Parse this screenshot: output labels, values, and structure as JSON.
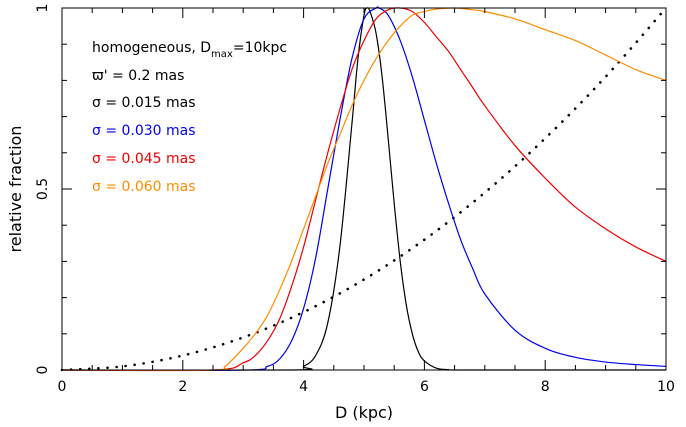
{
  "chart_data": {
    "type": "line",
    "xlabel": "D (kpc)",
    "ylabel": "relative fraction",
    "xlim": [
      0,
      10
    ],
    "ylim": [
      0,
      1
    ],
    "xticks": [
      0,
      2,
      4,
      6,
      8,
      10
    ],
    "yticks": [
      0,
      0.5,
      1
    ],
    "xtick_labels": [
      "0",
      "2",
      "4",
      "6",
      "8",
      "10"
    ],
    "ytick_labels": [
      "0",
      "0.5",
      "1"
    ],
    "grid": false,
    "annotations": {
      "line1_prefix": "homogeneous, D",
      "line1_sub": "max",
      "line1_suffix": "=10kpc",
      "line2": "ϖ' = 0.2 mas",
      "line3": "σ = 0.015 mas",
      "line4": "σ = 0.030 mas",
      "line5": "σ = 0.045 mas",
      "line6": "σ = 0.060 mas"
    },
    "colors": {
      "line3": "#000000",
      "line4": "#0000ee",
      "line5": "#ee0000",
      "line6": "#ff8c00"
    },
    "series": [
      {
        "color": "#000000",
        "style": "dotted",
        "x": [
          0,
          1,
          2,
          3,
          4,
          5,
          6,
          7,
          8,
          9,
          10
        ],
        "y": [
          0,
          0.01,
          0.04,
          0.09,
          0.16,
          0.25,
          0.36,
          0.49,
          0.64,
          0.81,
          1.0
        ]
      },
      {
        "color": "#000000",
        "style": "solid",
        "x": [
          0,
          3.8,
          4.0,
          4.2,
          4.4,
          4.6,
          4.8,
          4.9,
          5.0,
          5.05,
          5.1,
          5.2,
          5.3,
          5.4,
          5.5,
          5.6,
          5.7,
          5.8,
          5.9,
          6.0,
          6.2,
          6.4,
          6.6,
          10
        ],
        "y": [
          0,
          0,
          0.01,
          0.04,
          0.13,
          0.34,
          0.68,
          0.86,
          0.98,
          1.0,
          0.99,
          0.93,
          0.81,
          0.64,
          0.46,
          0.3,
          0.18,
          0.1,
          0.05,
          0.025,
          0.005,
          0.001,
          0,
          0
        ]
      },
      {
        "color": "#0000ee",
        "style": "solid",
        "x": [
          0,
          3.0,
          3.4,
          3.6,
          3.8,
          4.0,
          4.2,
          4.4,
          4.6,
          4.8,
          5.0,
          5.2,
          5.25,
          5.4,
          5.6,
          5.8,
          6.0,
          6.2,
          6.4,
          6.6,
          6.8,
          7.0,
          7.5,
          8.0,
          8.5,
          9.0,
          9.5,
          10.0
        ],
        "y": [
          0,
          0,
          0.01,
          0.03,
          0.08,
          0.17,
          0.31,
          0.5,
          0.69,
          0.86,
          0.97,
          1.0,
          1.0,
          0.98,
          0.91,
          0.81,
          0.69,
          0.57,
          0.46,
          0.36,
          0.28,
          0.21,
          0.11,
          0.06,
          0.035,
          0.022,
          0.015,
          0.01
        ]
      },
      {
        "color": "#ee0000",
        "style": "solid",
        "x": [
          0,
          2.5,
          3.0,
          3.2,
          3.4,
          3.6,
          3.8,
          4.0,
          4.2,
          4.4,
          4.6,
          4.8,
          5.0,
          5.2,
          5.4,
          5.6,
          5.8,
          6.0,
          6.2,
          6.4,
          6.6,
          6.8,
          7.0,
          7.5,
          8.0,
          8.5,
          9.0,
          9.5,
          10.0
        ],
        "y": [
          0,
          0,
          0.02,
          0.04,
          0.08,
          0.14,
          0.23,
          0.34,
          0.47,
          0.6,
          0.72,
          0.83,
          0.91,
          0.97,
          0.995,
          1.0,
          0.99,
          0.96,
          0.92,
          0.88,
          0.83,
          0.78,
          0.73,
          0.62,
          0.53,
          0.45,
          0.39,
          0.34,
          0.3
        ]
      },
      {
        "color": "#ff8c00",
        "style": "solid",
        "x": [
          0,
          2.5,
          2.7,
          3.0,
          3.2,
          3.4,
          3.6,
          3.8,
          4.0,
          4.2,
          4.4,
          4.6,
          4.8,
          5.0,
          5.2,
          5.4,
          5.6,
          5.8,
          6.0,
          6.2,
          6.5,
          6.8,
          7.0,
          7.5,
          8.0,
          8.5,
          9.0,
          9.5,
          10.0
        ],
        "y": [
          0,
          0,
          0.01,
          0.06,
          0.1,
          0.15,
          0.22,
          0.3,
          0.39,
          0.48,
          0.57,
          0.65,
          0.73,
          0.8,
          0.86,
          0.91,
          0.95,
          0.98,
          0.99,
          0.997,
          1.0,
          0.995,
          0.99,
          0.97,
          0.94,
          0.91,
          0.87,
          0.83,
          0.8
        ]
      }
    ]
  }
}
